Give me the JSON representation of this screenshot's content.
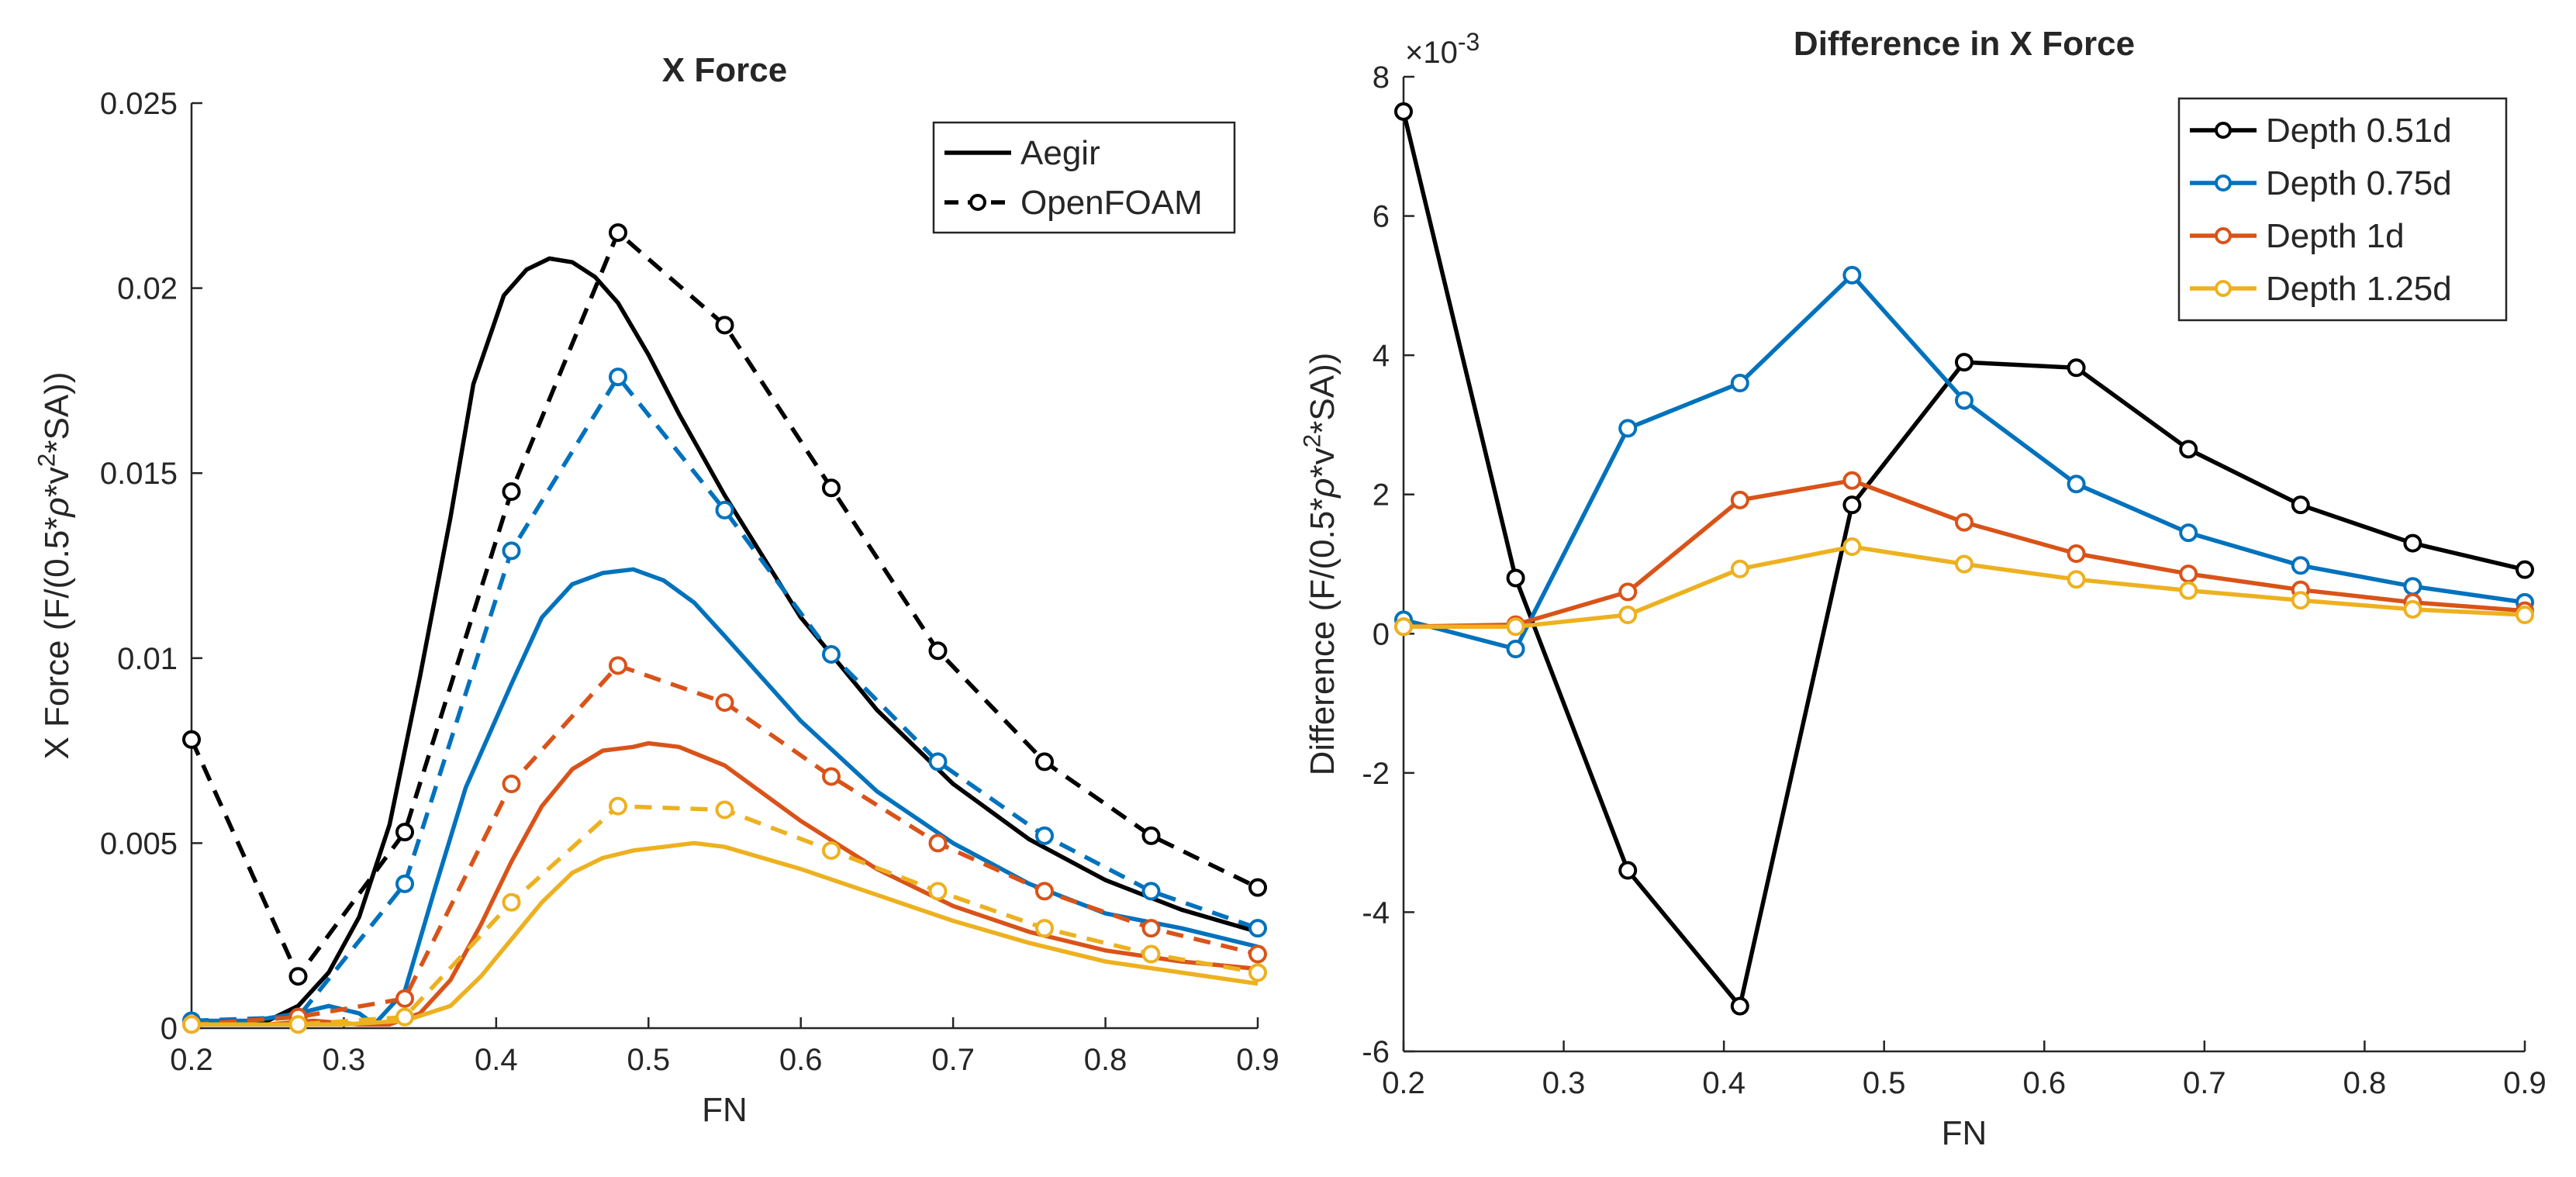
{
  "colors": {
    "black": "#000000",
    "blue": "#0072BD",
    "orange": "#D95319",
    "yellow": "#EDB120",
    "axis": "#262626"
  },
  "chart_data": [
    {
      "type": "line",
      "title": "X Force",
      "xlabel": "FN",
      "ylabel_parts": [
        "X Force (F/(0.5*",
        "ρ",
        "*v",
        "2",
        "*SA))"
      ],
      "xlim": [
        0.2,
        0.9
      ],
      "ylim": [
        0,
        0.025
      ],
      "xticks": [
        0.2,
        0.3,
        0.4,
        0.5,
        0.6,
        0.7,
        0.8,
        0.9
      ],
      "xtick_labels": [
        "0.2",
        "0.3",
        "0.4",
        "0.5",
        "0.6",
        "0.7",
        "0.8",
        "0.9"
      ],
      "yticks": [
        0,
        0.005,
        0.01,
        0.015,
        0.02,
        0.025
      ],
      "ytick_labels": [
        "0",
        "0.005",
        "0.01",
        "0.015",
        "0.02",
        "0.025"
      ],
      "legend": {
        "position": "top-right",
        "entries": [
          {
            "label": "Aegir",
            "style": "solid",
            "marker": false
          },
          {
            "label": "OpenFOAM",
            "style": "dashed",
            "marker": true
          }
        ]
      },
      "series": [
        {
          "name": "Aegir 0.51d",
          "color": "black",
          "style": "solid",
          "marker": false,
          "x": [
            0.2,
            0.225,
            0.25,
            0.27,
            0.29,
            0.31,
            0.33,
            0.35,
            0.37,
            0.385,
            0.405,
            0.42,
            0.435,
            0.45,
            0.465,
            0.48,
            0.5,
            0.52,
            0.55,
            0.6,
            0.65,
            0.7,
            0.75,
            0.8,
            0.85,
            0.9
          ],
          "y": [
            0.0002,
            0.0001,
            0.0002,
            0.0006,
            0.0015,
            0.003,
            0.0055,
            0.0095,
            0.0138,
            0.0174,
            0.0198,
            0.0205,
            0.0208,
            0.0207,
            0.0203,
            0.0196,
            0.0182,
            0.0166,
            0.0144,
            0.0111,
            0.0086,
            0.0066,
            0.0051,
            0.004,
            0.0032,
            0.0026
          ]
        },
        {
          "name": "OpenFOAM 0.51d",
          "color": "black",
          "style": "dashed",
          "marker": true,
          "x": [
            0.2,
            0.27,
            0.34,
            0.41,
            0.48,
            0.55,
            0.62,
            0.69,
            0.76,
            0.83,
            0.9
          ],
          "y": [
            0.0078,
            0.0014,
            0.0053,
            0.0145,
            0.0215,
            0.019,
            0.0146,
            0.0102,
            0.0072,
            0.0052,
            0.0038
          ]
        },
        {
          "name": "Aegir 0.75d",
          "color": "blue",
          "style": "solid",
          "marker": false,
          "x": [
            0.2,
            0.24,
            0.27,
            0.29,
            0.31,
            0.32,
            0.34,
            0.36,
            0.38,
            0.41,
            0.43,
            0.45,
            0.47,
            0.49,
            0.51,
            0.53,
            0.55,
            0.6,
            0.65,
            0.7,
            0.75,
            0.8,
            0.85,
            0.9
          ],
          "y": [
            0.0002,
            0.0002,
            0.0004,
            0.0006,
            0.0004,
            0.0001,
            0.001,
            0.0038,
            0.0065,
            0.0093,
            0.0111,
            0.012,
            0.0123,
            0.0124,
            0.0121,
            0.0115,
            0.0106,
            0.0083,
            0.0064,
            0.005,
            0.0039,
            0.0031,
            0.0027,
            0.0022
          ]
        },
        {
          "name": "OpenFOAM 0.75d",
          "color": "blue",
          "style": "dashed",
          "marker": true,
          "x": [
            0.2,
            0.27,
            0.34,
            0.41,
            0.48,
            0.55,
            0.62,
            0.69,
            0.76,
            0.83,
            0.9
          ],
          "y": [
            0.0002,
            0.0003,
            0.0039,
            0.0129,
            0.0176,
            0.014,
            0.0101,
            0.0072,
            0.0052,
            0.0037,
            0.0027
          ]
        },
        {
          "name": "Aegir 1d",
          "color": "orange",
          "style": "solid",
          "marker": false,
          "x": [
            0.2,
            0.25,
            0.28,
            0.31,
            0.33,
            0.35,
            0.37,
            0.39,
            0.41,
            0.43,
            0.45,
            0.47,
            0.49,
            0.5,
            0.52,
            0.55,
            0.6,
            0.65,
            0.7,
            0.75,
            0.8,
            0.85,
            0.9
          ],
          "y": [
            0.0001,
            0.0001,
            0.0002,
            0.0001,
            0.0001,
            0.0004,
            0.0013,
            0.0028,
            0.0045,
            0.006,
            0.007,
            0.0075,
            0.0076,
            0.0077,
            0.0076,
            0.0071,
            0.0056,
            0.0043,
            0.0033,
            0.0026,
            0.0021,
            0.0018,
            0.0016
          ]
        },
        {
          "name": "OpenFOAM 1d",
          "color": "orange",
          "style": "dashed",
          "marker": true,
          "x": [
            0.2,
            0.27,
            0.34,
            0.41,
            0.48,
            0.55,
            0.62,
            0.69,
            0.76,
            0.83,
            0.9
          ],
          "y": [
            0.0001,
            0.0003,
            0.0008,
            0.0066,
            0.0098,
            0.0088,
            0.0068,
            0.005,
            0.0037,
            0.0027,
            0.002
          ]
        },
        {
          "name": "Aegir 1.25d",
          "color": "yellow",
          "style": "solid",
          "marker": false,
          "x": [
            0.2,
            0.26,
            0.3,
            0.34,
            0.37,
            0.39,
            0.41,
            0.43,
            0.45,
            0.47,
            0.49,
            0.51,
            0.53,
            0.55,
            0.6,
            0.65,
            0.7,
            0.75,
            0.8,
            0.85,
            0.9
          ],
          "y": [
            0.0001,
            0.0001,
            0.0001,
            0.0002,
            0.0006,
            0.0014,
            0.0024,
            0.0034,
            0.0042,
            0.0046,
            0.0048,
            0.0049,
            0.005,
            0.0049,
            0.0043,
            0.0036,
            0.0029,
            0.0023,
            0.0018,
            0.0015,
            0.0012
          ]
        },
        {
          "name": "OpenFOAM 1.25d",
          "color": "yellow",
          "style": "dashed",
          "marker": true,
          "x": [
            0.2,
            0.27,
            0.34,
            0.41,
            0.48,
            0.55,
            0.62,
            0.69,
            0.76,
            0.83,
            0.9
          ],
          "y": [
            0.0001,
            0.0001,
            0.0003,
            0.0034,
            0.006,
            0.0059,
            0.0048,
            0.0037,
            0.0027,
            0.002,
            0.0015
          ]
        }
      ]
    },
    {
      "type": "line",
      "title": "Difference in X Force",
      "xlabel": "FN",
      "ylabel_parts": [
        "Difference (F/(0.5*",
        "ρ",
        "*v",
        "2",
        "*SA))"
      ],
      "exponent_parts": [
        "×10",
        "-3"
      ],
      "xlim": [
        0.2,
        0.9
      ],
      "ylim": [
        -6,
        8
      ],
      "xticks": [
        0.2,
        0.3,
        0.4,
        0.5,
        0.6,
        0.7,
        0.8,
        0.9
      ],
      "xtick_labels": [
        "0.2",
        "0.3",
        "0.4",
        "0.5",
        "0.6",
        "0.7",
        "0.8",
        "0.9"
      ],
      "yticks": [
        -6,
        -4,
        -2,
        0,
        2,
        4,
        6,
        8
      ],
      "ytick_labels": [
        "-6",
        "-4",
        "-2",
        "0",
        "2",
        "4",
        "6",
        "8"
      ],
      "legend": {
        "position": "top-right",
        "entries": [
          {
            "label": "Depth 0.51d",
            "color": "black",
            "marker": true
          },
          {
            "label": "Depth 0.75d",
            "color": "blue",
            "marker": true
          },
          {
            "label": "Depth 1d",
            "color": "orange",
            "marker": true
          },
          {
            "label": "Depth 1.25d",
            "color": "yellow",
            "marker": true
          }
        ]
      },
      "series": [
        {
          "name": "Depth 0.51d",
          "color": "black",
          "style": "solid",
          "marker": true,
          "x": [
            0.2,
            0.27,
            0.34,
            0.41,
            0.48,
            0.55,
            0.62,
            0.69,
            0.76,
            0.83,
            0.9
          ],
          "y": [
            7.5,
            0.8,
            -3.4,
            -5.35,
            1.85,
            3.9,
            3.82,
            2.65,
            1.85,
            1.3,
            0.92
          ]
        },
        {
          "name": "Depth 0.75d",
          "color": "blue",
          "style": "solid",
          "marker": true,
          "x": [
            0.2,
            0.27,
            0.34,
            0.41,
            0.48,
            0.55,
            0.62,
            0.69,
            0.76,
            0.83,
            0.9
          ],
          "y": [
            0.2,
            -0.22,
            2.95,
            3.6,
            5.15,
            3.35,
            2.15,
            1.45,
            0.98,
            0.68,
            0.45
          ]
        },
        {
          "name": "Depth 1d",
          "color": "orange",
          "style": "solid",
          "marker": true,
          "x": [
            0.2,
            0.27,
            0.34,
            0.41,
            0.48,
            0.55,
            0.62,
            0.69,
            0.76,
            0.83,
            0.9
          ],
          "y": [
            0.1,
            0.13,
            0.6,
            1.92,
            2.2,
            1.6,
            1.15,
            0.86,
            0.63,
            0.45,
            0.33
          ]
        },
        {
          "name": "Depth 1.25d",
          "color": "yellow",
          "style": "solid",
          "marker": true,
          "x": [
            0.2,
            0.27,
            0.34,
            0.41,
            0.48,
            0.55,
            0.62,
            0.69,
            0.76,
            0.83,
            0.9
          ],
          "y": [
            0.1,
            0.1,
            0.27,
            0.93,
            1.25,
            1.0,
            0.78,
            0.62,
            0.48,
            0.35,
            0.27
          ]
        }
      ]
    }
  ]
}
